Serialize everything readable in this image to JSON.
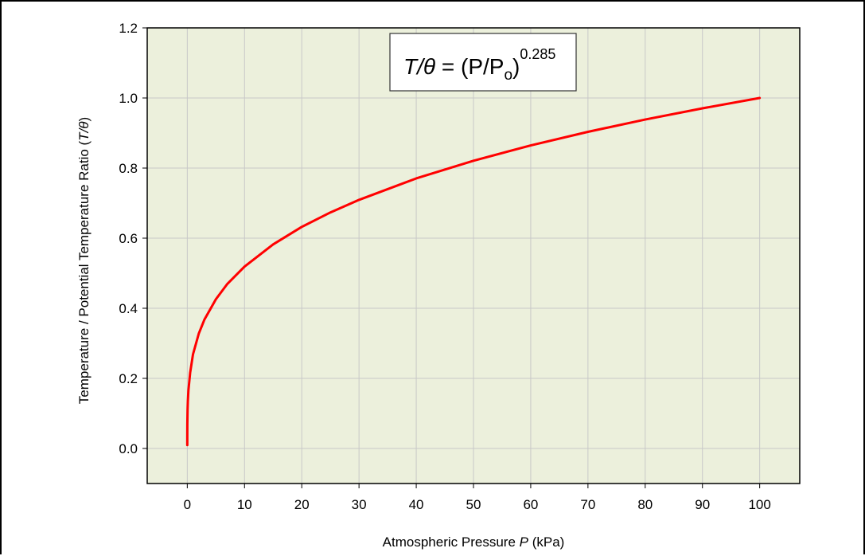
{
  "chart_data": {
    "type": "line",
    "xlabel": {
      "prefix": "Atmospheric Pressure ",
      "var": "P",
      "suffix": " (kPa)"
    },
    "ylabel": {
      "prefix": "Temperature / Potential Temperature Ratio (",
      "var": "T/θ",
      "suffix": ")"
    },
    "xlim": [
      -7,
      107
    ],
    "ylim": [
      -0.1,
      1.2
    ],
    "xticks": [
      0,
      10,
      20,
      30,
      40,
      50,
      60,
      70,
      80,
      90,
      100
    ],
    "yticks": [
      0.0,
      0.2,
      0.4,
      0.6,
      0.8,
      1.0,
      1.2
    ],
    "ytick_labels": [
      "0.0",
      "0.2",
      "0.4",
      "0.6",
      "0.8",
      "1.0",
      "1.2"
    ],
    "grid": true,
    "annotation": {
      "lhs": "T/θ",
      "eq": " = ",
      "rhs_base": "(P/P",
      "rhs_sub": "o",
      "rhs_close": ")",
      "exponent": "0.285"
    },
    "series": [
      {
        "color": "#ff0000",
        "exponent": 0.285,
        "x": [
          1e-05,
          0.001,
          0.01,
          0.05,
          0.1,
          0.2,
          0.5,
          1,
          2,
          3,
          5,
          7,
          10,
          15,
          20,
          25,
          30,
          40,
          50,
          60,
          70,
          80,
          90,
          100
        ],
        "y": [
          0.0096,
          0.0359,
          0.0697,
          0.1101,
          0.1355,
          0.1659,
          0.2161,
          0.2687,
          0.3273,
          0.3679,
          0.4258,
          0.4696,
          0.5188,
          0.5823,
          0.6323,
          0.6734,
          0.7093,
          0.7705,
          0.8209,
          0.8646,
          0.9034,
          0.9385,
          0.9704,
          1.0
        ]
      }
    ]
  },
  "colors": {
    "plot_background": "#ecf0dc",
    "grid": "#c8c8c8",
    "line": "#ff0000"
  }
}
